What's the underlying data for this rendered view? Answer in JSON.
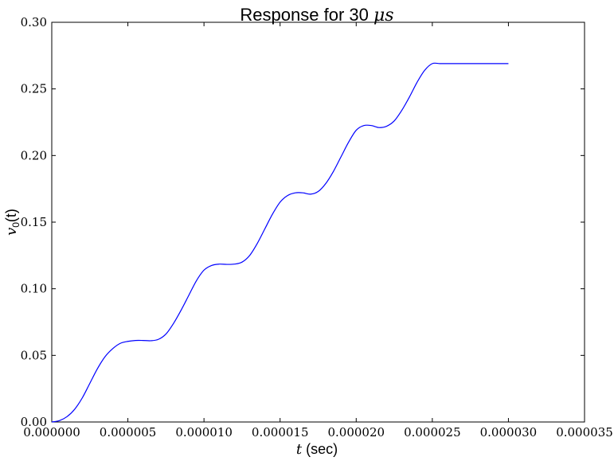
{
  "chart_data": {
    "type": "line",
    "title_prefix": "Response for 30 ",
    "title_math": "μs",
    "xlabel_math": "t",
    "xlabel_rest": " (sec)",
    "ylabel_math": "v",
    "ylabel_sub": "0",
    "ylabel_rest": "(t)",
    "xlim": [
      0,
      3.5e-05
    ],
    "ylim": [
      0,
      0.3
    ],
    "x_ticks": [
      0,
      5e-06,
      1e-05,
      1.5e-05,
      2e-05,
      2.5e-05,
      3e-05,
      3.5e-05
    ],
    "x_tick_labels": [
      "0.000000",
      "0.000005",
      "0.000010",
      "0.000015",
      "0.000020",
      "0.000025",
      "0.000030",
      "0.000035"
    ],
    "y_ticks": [
      0,
      0.05,
      0.1,
      0.15,
      0.2,
      0.25,
      0.3
    ],
    "y_tick_labels": [
      "0.00",
      "0.05",
      "0.10",
      "0.15",
      "0.20",
      "0.25",
      "0.30"
    ],
    "grid": false,
    "series": [
      {
        "color": "#0000ff",
        "x": [
          0,
          5e-07,
          1e-06,
          1.5e-06,
          2e-06,
          2.5e-06,
          3e-06,
          3.5e-06,
          4e-06,
          4.5e-06,
          5e-06,
          5.5e-06,
          6e-06,
          6.5e-06,
          7e-06,
          7.5e-06,
          8e-06,
          8.5e-06,
          9e-06,
          9.5e-06,
          1e-05,
          1.05e-05,
          1.1e-05,
          1.15e-05,
          1.2e-05,
          1.25e-05,
          1.3e-05,
          1.35e-05,
          1.4e-05,
          1.45e-05,
          1.5e-05,
          1.55e-05,
          1.6e-05,
          1.65e-05,
          1.7e-05,
          1.75e-05,
          1.8e-05,
          1.85e-05,
          1.9e-05,
          1.95e-05,
          2e-05,
          2.05e-05,
          2.1e-05,
          2.15e-05,
          2.2e-05,
          2.25e-05,
          2.3e-05,
          2.35e-05,
          2.4e-05,
          2.45e-05,
          2.5e-05,
          2.55e-05,
          2.6e-05,
          2.65e-05,
          2.7e-05,
          2.75e-05,
          2.8e-05,
          2.85e-05,
          2.9e-05,
          2.95e-05,
          3e-05
        ],
        "y": [
          0,
          0.001,
          0.004,
          0.0095,
          0.018,
          0.029,
          0.04,
          0.049,
          0.055,
          0.059,
          0.0605,
          0.0612,
          0.0612,
          0.061,
          0.062,
          0.066,
          0.074,
          0.084,
          0.095,
          0.106,
          0.114,
          0.1175,
          0.1185,
          0.1183,
          0.1185,
          0.12,
          0.125,
          0.134,
          0.145,
          0.156,
          0.165,
          0.17,
          0.172,
          0.172,
          0.171,
          0.173,
          0.179,
          0.188,
          0.199,
          0.21,
          0.219,
          0.2225,
          0.2225,
          0.221,
          0.222,
          0.226,
          0.234,
          0.244,
          0.255,
          0.264,
          0.269,
          0.269,
          0.269,
          0.269,
          0.269,
          0.269,
          0.269,
          0.269,
          0.269,
          0.269,
          0.269
        ]
      }
    ]
  }
}
